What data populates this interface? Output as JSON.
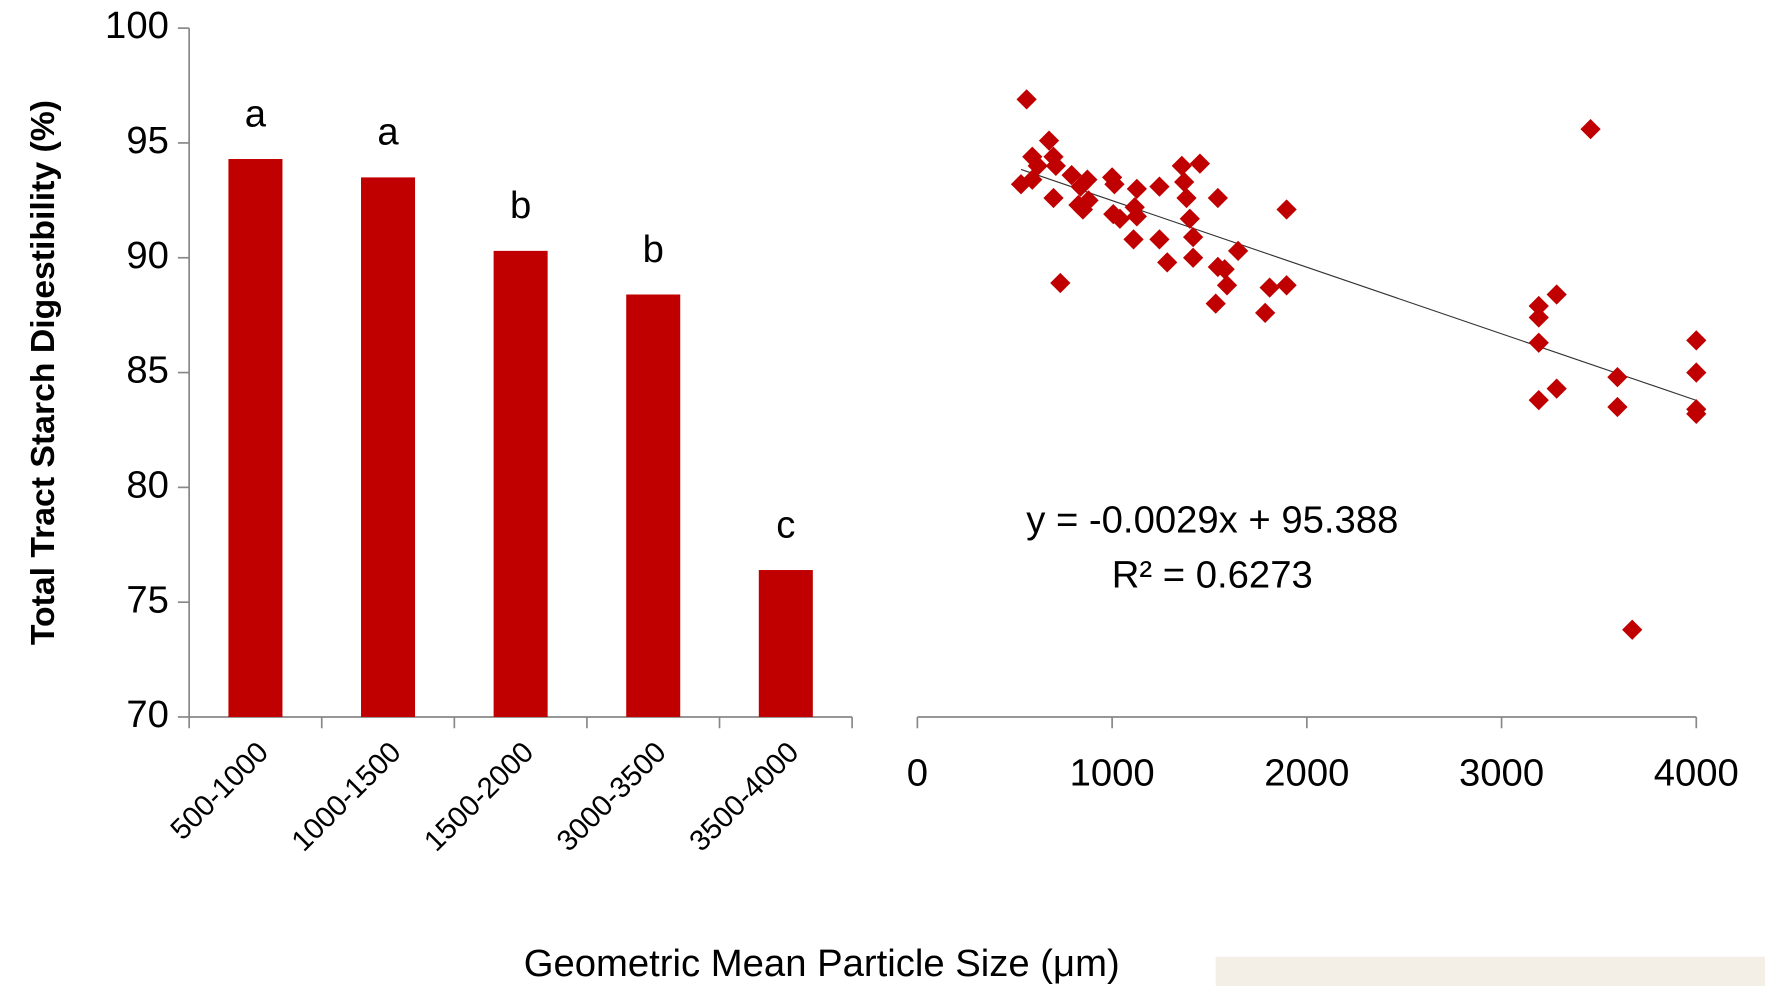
{
  "chart_data": [
    {
      "type": "bar",
      "ylabel": "Total Tract Starch Digestibility  (%)",
      "xlabel": "Geometric Mean Particle Size (μm)",
      "categories": [
        "500-1000",
        "1000-1500",
        "1500-2000",
        "3000-3500",
        "3500-4000"
      ],
      "values": [
        94.3,
        93.5,
        90.3,
        88.4,
        76.4
      ],
      "letters": [
        "a",
        "a",
        "b",
        "b",
        "c"
      ],
      "color": "#c00000",
      "ylim": [
        70,
        100
      ],
      "yticks": [
        70,
        75,
        80,
        85,
        90,
        95,
        100
      ]
    },
    {
      "type": "scatter",
      "color": "#c00000",
      "x": [
        561,
        532,
        590,
        590,
        618,
        676,
        699,
        711,
        699,
        734,
        792,
        838,
        873,
        827,
        850,
        879,
        1000,
        1012,
        1006,
        1040,
        1127,
        1116,
        1127,
        1110,
        1243,
        1243,
        1283,
        1358,
        1451,
        1370,
        1382,
        1399,
        1416,
        1416,
        1543,
        1543,
        1578,
        1590,
        1532,
        1647,
        1809,
        1786,
        1896,
        1896,
        3191,
        3191,
        3191,
        3283,
        3191,
        3283,
        3457,
        3595,
        3595,
        3671,
        4000,
        4000,
        4000,
        4000
      ],
      "values": [
        96.9,
        93.2,
        93.4,
        94.4,
        94.0,
        95.1,
        94.4,
        94.0,
        92.6,
        88.9,
        93.6,
        93.1,
        93.4,
        92.3,
        92.1,
        92.5,
        93.5,
        93.2,
        91.9,
        91.7,
        93.0,
        92.2,
        91.8,
        90.8,
        93.1,
        90.8,
        89.8,
        94.0,
        94.1,
        93.3,
        92.6,
        91.7,
        90.9,
        90.0,
        92.6,
        89.6,
        89.5,
        88.8,
        88.0,
        90.3,
        88.7,
        87.6,
        92.1,
        88.8,
        87.9,
        87.4,
        86.3,
        88.4,
        83.8,
        84.3,
        95.6,
        84.8,
        83.5,
        73.8,
        86.4,
        85.0,
        83.4,
        83.2
      ],
      "trendline": {
        "slope": -0.0029,
        "intercept": 95.388
      },
      "equation": "y = -0.0029x + 95.388",
      "r_squared": "R² = 0.6273",
      "xlim": [
        0,
        4000
      ],
      "xticks": [
        0,
        1000,
        2000,
        3000,
        4000
      ],
      "ylim": [
        70,
        100
      ]
    }
  ]
}
